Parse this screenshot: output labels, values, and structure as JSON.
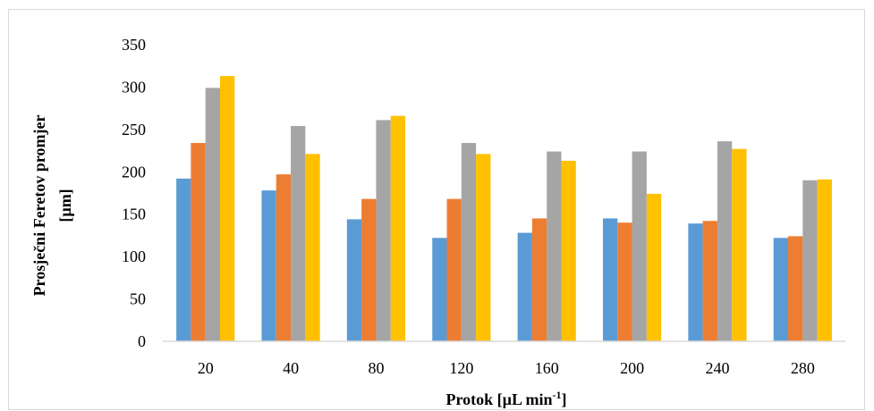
{
  "chart_data": {
    "type": "bar",
    "title": "",
    "xlabel": "Protok [µL min",
    "xlabel_superscript": "-1",
    "xlabel_suffix": "]",
    "ylabel_line1": "Prosječni Feretov promjer",
    "ylabel_line2": "[µm]",
    "ylim": [
      0,
      350
    ],
    "yticks": [
      0,
      50,
      100,
      150,
      200,
      250,
      300,
      350
    ],
    "grid": false,
    "legend": "none",
    "categories": [
      "20",
      "40",
      "80",
      "120",
      "160",
      "200",
      "240",
      "280"
    ],
    "series": [
      {
        "color": "#5b9bd5",
        "values": [
          192,
          178,
          144,
          122,
          128,
          145,
          139,
          122
        ]
      },
      {
        "color": "#ed7d31",
        "values": [
          234,
          197,
          168,
          168,
          145,
          140,
          142,
          124
        ]
      },
      {
        "color": "#a5a5a5",
        "values": [
          299,
          254,
          261,
          234,
          224,
          224,
          236,
          190
        ]
      },
      {
        "color": "#ffc000",
        "values": [
          313,
          221,
          266,
          221,
          213,
          174,
          227,
          191
        ]
      }
    ]
  }
}
